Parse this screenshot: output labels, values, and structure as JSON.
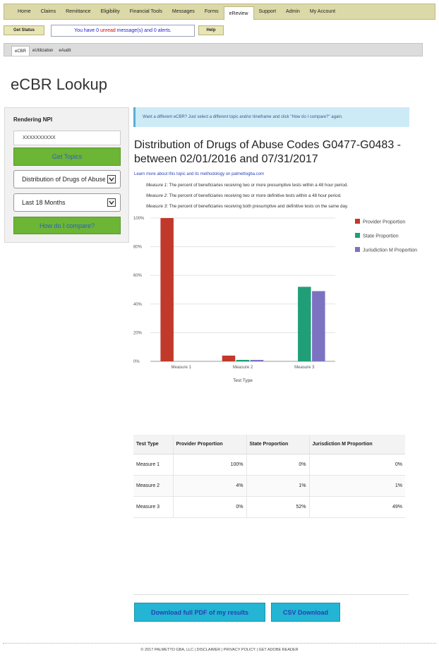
{
  "nav": {
    "items": [
      "Home",
      "Claims",
      "Remittance",
      "Eligibility",
      "Financial Tools",
      "Messages",
      "Forms",
      "eReview",
      "Support",
      "Admin",
      "My Account"
    ],
    "active": "eReview"
  },
  "status": {
    "get_status_label": "Get Status",
    "message_prefix": "You have",
    "unread_count": "0",
    "unread_word": "unread",
    "message_suffix": "message(s) and 0 alerts.",
    "help_label": "Help"
  },
  "subtabs": {
    "items": [
      "eCBR",
      "eUtilization",
      "eAudit"
    ],
    "active": "eCBR"
  },
  "page_title": "eCBR Lookup",
  "sidebar": {
    "label": "Rendering NPI",
    "npi_value": "XXXXXXXXXX",
    "get_topics_label": "Get Topics",
    "topic_selected": "Distribution of Drugs of Abuse",
    "timeframe_selected": "Last 18 Months",
    "compare_label": "How do I compare?"
  },
  "banner": "Want a different eCBR? Just select a different topic and/or timeframe and click \"How do I compare?\" again.",
  "report": {
    "title": "Distribution of Drugs of Abuse Codes G0477-G0483 - between 02/01/2016 and 07/31/2017",
    "learn_more": "Learn more about this topic and its methodology on palmettogba.com",
    "measures": [
      {
        "label": "Measure 1",
        "text": ": The percent of beneficiaries receiving two or more presumptive tests within a 48 hour period."
      },
      {
        "label": "Measure 2",
        "text": ": The percent of beneficiaries receiving two or more definitive tests within a 48 hour period."
      },
      {
        "label": "Measure 3",
        "text": ": The percent of beneficiaries receiving both presumptive and definitive tests on the same day."
      }
    ]
  },
  "colors": {
    "provider": "#c0392b",
    "state": "#1f9e78",
    "jurisdiction": "#7b73c1"
  },
  "chart_data": {
    "type": "bar",
    "categories": [
      "Measure 1",
      "Measure 2",
      "Measure 3"
    ],
    "series": [
      {
        "name": "Provider Proportion",
        "values": [
          100,
          4,
          0
        ]
      },
      {
        "name": "State Proportion",
        "values": [
          0,
          1,
          52
        ]
      },
      {
        "name": "Jurisdiction M Proportion",
        "values": [
          0,
          1,
          49
        ]
      }
    ],
    "xlabel": "Test Type",
    "ylabel": "",
    "ylim": [
      0,
      100
    ],
    "yticks": [
      "0%",
      "20%",
      "40%",
      "60%",
      "80%",
      "100%"
    ],
    "grid": true,
    "legend_position": "right"
  },
  "table": {
    "headers": [
      "Test Type",
      "Provider Proportion",
      "State Proportion",
      "Jurisdiction M Proportion"
    ],
    "rows": [
      [
        "Measure 1",
        "100%",
        "0%",
        "0%"
      ],
      [
        "Measure 2",
        "4%",
        "1%",
        "1%"
      ],
      [
        "Measure 3",
        "0%",
        "52%",
        "49%"
      ]
    ]
  },
  "downloads": {
    "pdf_label": "Download full PDF of my results",
    "csv_label": "CSV Download"
  },
  "footer": "© 2017 PALMETTO GBA, LLC | DISCLAIMER | PRIVACY POLICY | GET ADOBE READER"
}
